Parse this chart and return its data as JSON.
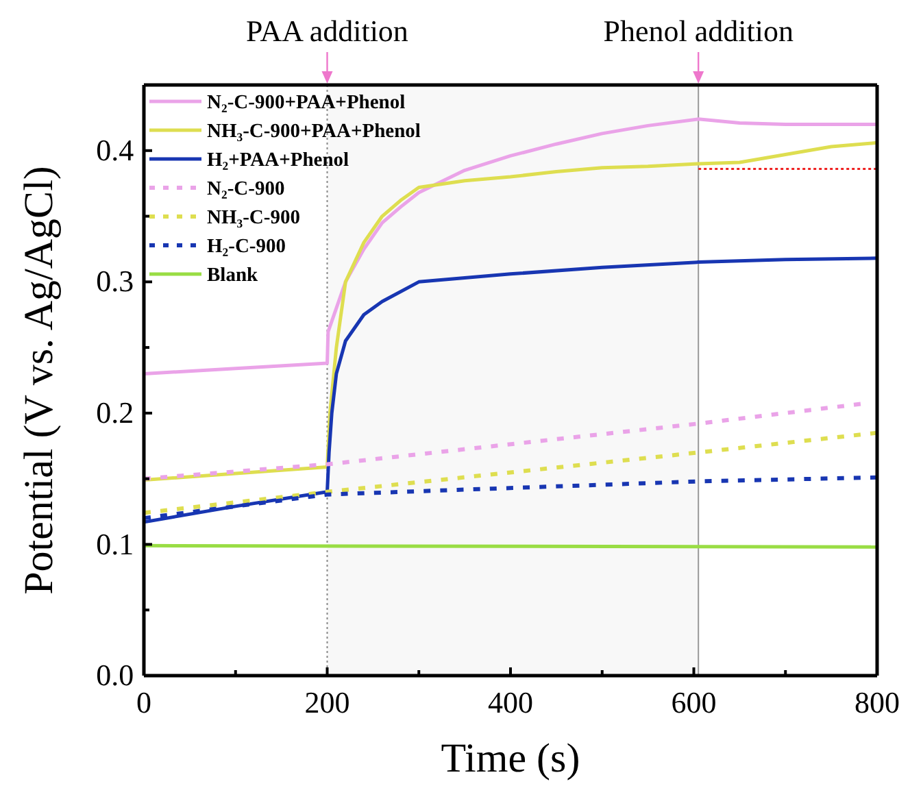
{
  "chart_data": {
    "type": "line",
    "xlabel": "Time (s)",
    "ylabel": "Potential (V vs. Ag/AgCl)",
    "xlim": [
      0,
      800
    ],
    "ylim": [
      0,
      0.45
    ],
    "xticks": [
      0,
      {
        "value": 100,
        "label": null
      },
      200,
      {
        "value": 300,
        "label": null
      },
      400,
      {
        "value": 500,
        "label": null
      },
      600,
      {
        "value": 700,
        "label": null
      },
      800
    ],
    "yticks": [
      {
        "value": 0,
        "label": "0.0"
      },
      {
        "value": 0.05,
        "label": null
      },
      0.1,
      {
        "value": 0.15,
        "label": null
      },
      0.2,
      {
        "value": 0.25,
        "label": null
      },
      0.3,
      {
        "value": 0.35,
        "label": null
      },
      0.4
    ],
    "grid": false,
    "legend": "top left",
    "marker": "none",
    "bands": [
      {
        "axis": "x",
        "from": 200,
        "to": 605,
        "label": null,
        "color": "#f8f8f8"
      }
    ],
    "ref_lines": [
      {
        "axis": "x",
        "value": 200,
        "label": "PAA addition",
        "color": "#888888",
        "line_style": "dotted"
      },
      {
        "axis": "x",
        "value": 605,
        "label": "Phenol addition",
        "color": "#999999",
        "line_style": "solid"
      }
    ],
    "series": [
      {
        "name": "N₂-C-900+PAA+Phenol",
        "color": "#eaa3e8",
        "line_style": "solid",
        "x": [
          0,
          100,
          200,
          201,
          210,
          220,
          240,
          260,
          280,
          300,
          350,
          400,
          450,
          500,
          550,
          605,
          650,
          700,
          800
        ],
        "values": [
          0.23,
          0.234,
          0.238,
          0.262,
          0.28,
          0.3,
          0.325,
          0.345,
          0.357,
          0.368,
          0.385,
          0.396,
          0.405,
          0.413,
          0.419,
          0.424,
          0.421,
          0.42,
          0.42
        ]
      },
      {
        "name": "NH₃-C-900+PAA+Phenol",
        "color": "#dede50",
        "line_style": "solid",
        "x": [
          0,
          100,
          200,
          203,
          210,
          220,
          240,
          260,
          280,
          300,
          350,
          400,
          450,
          500,
          550,
          605,
          650,
          700,
          750,
          800
        ],
        "values": [
          0.149,
          0.154,
          0.159,
          0.2,
          0.25,
          0.3,
          0.33,
          0.35,
          0.362,
          0.372,
          0.377,
          0.38,
          0.384,
          0.387,
          0.388,
          0.39,
          0.391,
          0.397,
          0.403,
          0.406
        ]
      },
      {
        "name": "H₂+PAA+Phenol",
        "color": "#1836b2",
        "line_style": "solid",
        "x": [
          0,
          100,
          200,
          202,
          205,
          210,
          220,
          240,
          260,
          300,
          400,
          500,
          605,
          700,
          800
        ],
        "values": [
          0.117,
          0.129,
          0.14,
          0.17,
          0.2,
          0.23,
          0.255,
          0.275,
          0.285,
          0.3,
          0.306,
          0.311,
          0.315,
          0.317,
          0.318
        ]
      },
      {
        "name": "N₂-C-900",
        "color": "#eaa3e8",
        "line_style": "dotted",
        "x": [
          0,
          200,
          605,
          782
        ],
        "values": [
          0.15,
          0.161,
          0.192,
          0.207
        ]
      },
      {
        "name": "NH₃-C-900",
        "color": "#dede50",
        "line_style": "dotted",
        "x": [
          0,
          200,
          605,
          800
        ],
        "values": [
          0.124,
          0.14,
          0.17,
          0.185
        ]
      },
      {
        "name": "H₂-C-900",
        "color": "#1836b2",
        "line_style": "dotted",
        "x": [
          0,
          200,
          605,
          800
        ],
        "values": [
          0.12,
          0.138,
          0.148,
          0.151
        ]
      },
      {
        "name": "Blank",
        "color": "#99dd44",
        "line_style": "solid",
        "x": [
          0,
          800
        ],
        "values": [
          0.099,
          0.098
        ]
      },
      {
        "color": "#ee2222",
        "line_style": "dotted",
        "x": [
          605,
          800
        ],
        "values": [
          0.386,
          0.386
        ]
      }
    ]
  }
}
